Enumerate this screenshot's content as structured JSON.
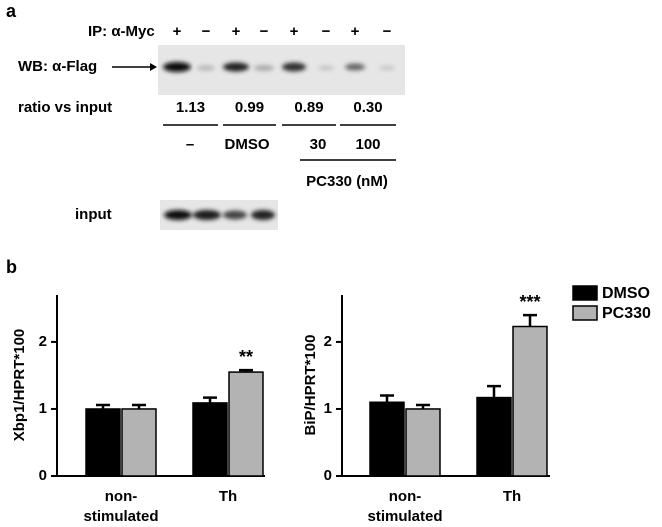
{
  "panel_a": {
    "label": "a",
    "ip_label": "IP: α-Myc",
    "ip_signs": [
      "+",
      "−",
      "+",
      "−",
      "+",
      "−",
      "+",
      "−"
    ],
    "wb_label": "WB: α-Flag",
    "ratio_label": "ratio vs input",
    "ratios": [
      "1.13",
      "0.99",
      "0.89",
      "0.30"
    ],
    "treatments": [
      "–",
      "DMSO",
      "30",
      "100"
    ],
    "drug_label": "PC330 (nM)",
    "input_label": "input"
  },
  "panel_b_label": "b",
  "chart_data": [
    {
      "type": "bar",
      "y_label": "Xbp1/HPRT*100",
      "categories": [
        "non-\nstimulated",
        "Th"
      ],
      "series": [
        {
          "name": "DMSO",
          "color": "#000000",
          "values": [
            1.0,
            1.09
          ],
          "errors": [
            0.06,
            0.08
          ]
        },
        {
          "name": "PC330",
          "color": "#b3b3b3",
          "values": [
            1.0,
            1.55
          ],
          "errors": [
            0.06,
            0.03
          ]
        }
      ],
      "annotation": "**",
      "ylim": [
        0,
        2.7
      ],
      "yticks": [
        0,
        1,
        2
      ]
    },
    {
      "type": "bar",
      "y_label": "BiP/HPRT*100",
      "categories": [
        "non-\nstimulated",
        "Th"
      ],
      "series": [
        {
          "name": "DMSO",
          "color": "#000000",
          "values": [
            1.1,
            1.17
          ],
          "errors": [
            0.1,
            0.17
          ]
        },
        {
          "name": "PC330",
          "color": "#b3b3b3",
          "values": [
            1.0,
            2.23
          ],
          "errors": [
            0.06,
            0.17
          ]
        }
      ],
      "annotation": "***",
      "ylim": [
        0,
        2.7
      ],
      "yticks": [
        0,
        1,
        2
      ],
      "legend": "right"
    }
  ]
}
